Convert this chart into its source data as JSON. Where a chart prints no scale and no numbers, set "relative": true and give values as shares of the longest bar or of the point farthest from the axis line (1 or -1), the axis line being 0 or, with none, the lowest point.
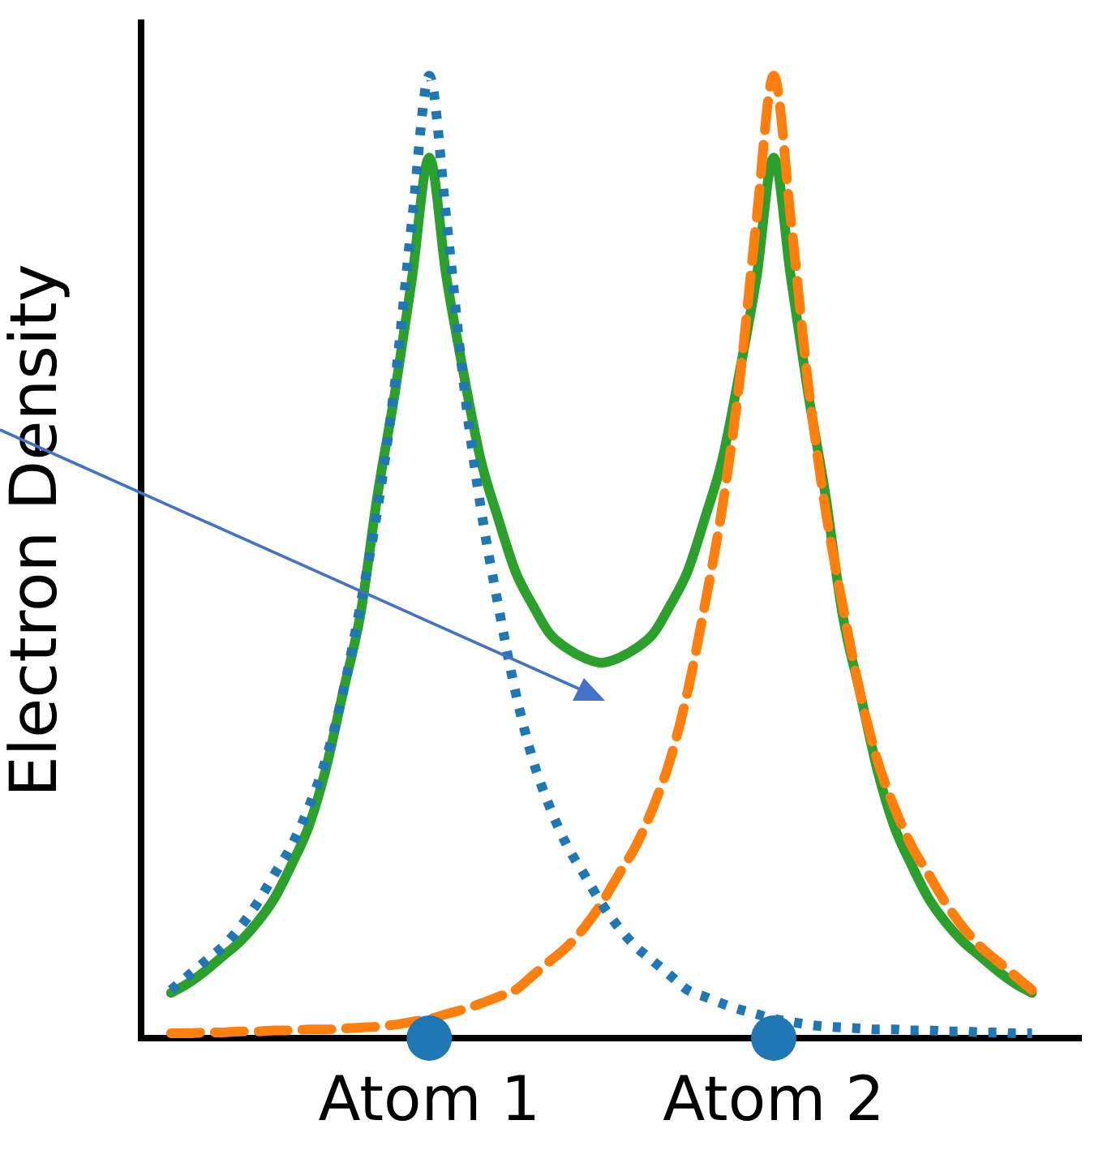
{
  "chart_data": {
    "type": "line",
    "ylabel": "Electron Density",
    "relative": true,
    "marker": "none",
    "grid": false,
    "legend": false,
    "categories": [
      null,
      null,
      null,
      null,
      null,
      null,
      null,
      null,
      null,
      null,
      null,
      null,
      null,
      null,
      null,
      "Atom 1",
      null,
      null,
      null,
      null,
      null,
      null,
      null,
      null,
      null,
      null,
      null,
      null,
      null,
      null,
      null,
      null,
      null,
      null,
      null,
      "Atom 2",
      null,
      null,
      null,
      null,
      null,
      null,
      null,
      null,
      null,
      null,
      null,
      null,
      null,
      null,
      null
    ],
    "series": [
      {
        "color": "#1f77b4",
        "line_style": "dotted",
        "values": [
          0.05,
          0.065,
          0.08,
          0.095,
          0.115,
          0.14,
          0.17,
          0.2,
          0.24,
          0.29,
          0.36,
          0.45,
          0.55,
          0.68,
          0.85,
          1.0,
          0.85,
          0.68,
          0.55,
          0.45,
          0.36,
          0.29,
          0.24,
          0.2,
          0.17,
          0.14,
          0.115,
          0.095,
          0.08,
          0.065,
          0.05,
          0.043,
          0.036,
          0.03,
          0.025,
          0.02,
          0.017,
          0.014,
          0.012,
          0.011,
          0.01,
          0.009,
          0.009,
          0.008,
          0.008,
          0.007,
          0.007,
          0.006,
          0.006,
          0.005,
          0.005
        ]
      },
      {
        "color": "#ff7f0e",
        "line_style": "dashed",
        "values": [
          0.005,
          0.005,
          0.006,
          0.006,
          0.007,
          0.007,
          0.008,
          0.008,
          0.009,
          0.009,
          0.01,
          0.011,
          0.012,
          0.014,
          0.017,
          0.02,
          0.025,
          0.03,
          0.036,
          0.043,
          0.05,
          0.065,
          0.08,
          0.095,
          0.115,
          0.14,
          0.17,
          0.2,
          0.24,
          0.29,
          0.36,
          0.45,
          0.55,
          0.68,
          0.85,
          1.0,
          0.85,
          0.68,
          0.55,
          0.45,
          0.36,
          0.29,
          0.24,
          0.2,
          0.17,
          0.14,
          0.115,
          0.095,
          0.08,
          0.065,
          0.05
        ]
      },
      {
        "color": "#2ca02c",
        "line_style": "solid",
        "values": [
          0.047,
          0.057,
          0.07,
          0.085,
          0.1,
          0.12,
          0.145,
          0.18,
          0.22,
          0.28,
          0.36,
          0.44,
          0.565,
          0.67,
          0.79,
          0.915,
          0.79,
          0.69,
          0.6,
          0.54,
          0.485,
          0.45,
          0.42,
          0.405,
          0.395,
          0.39,
          0.395,
          0.405,
          0.42,
          0.45,
          0.485,
          0.54,
          0.6,
          0.69,
          0.79,
          0.915,
          0.79,
          0.67,
          0.565,
          0.44,
          0.36,
          0.28,
          0.22,
          0.18,
          0.145,
          0.12,
          0.1,
          0.085,
          0.07,
          0.057,
          0.047
        ]
      },
      {
        "type": "scatter",
        "color": "#1f77b4",
        "marker": "circle",
        "x": [
          "Atom 1",
          "Atom 2"
        ],
        "values": [
          0,
          0
        ]
      }
    ]
  }
}
